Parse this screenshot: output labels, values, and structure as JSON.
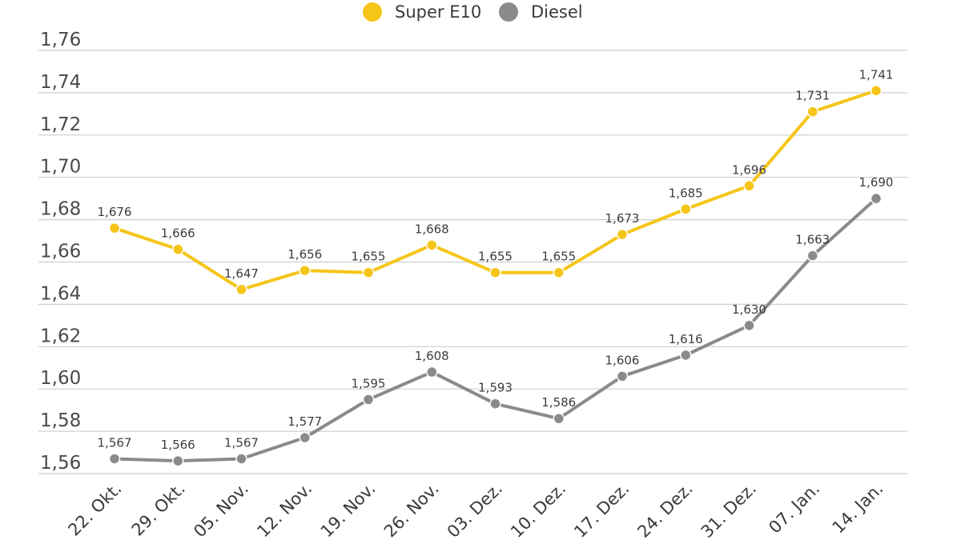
{
  "chart_data": {
    "type": "line",
    "title": "",
    "xlabel": "",
    "ylabel": "",
    "categories": [
      "22. Okt.",
      "29. Okt.",
      "05. Nov.",
      "12. Nov.",
      "19. Nov.",
      "26. Nov.",
      "03. Dez.",
      "10. Dez.",
      "17. Dez.",
      "24. Dez.",
      "31. Dez.",
      "07. Jan.",
      "14. Jan."
    ],
    "ylim": [
      1.555,
      1.76
    ],
    "yticks": [
      "1,56",
      "1,58",
      "1,60",
      "1,62",
      "1,64",
      "1,66",
      "1,68",
      "1,70",
      "1,72",
      "1,74",
      "1,76"
    ],
    "ytick_values": [
      1.56,
      1.58,
      1.6,
      1.62,
      1.64,
      1.66,
      1.68,
      1.7,
      1.72,
      1.74,
      1.76
    ],
    "grid": true,
    "legend_position": "top-center",
    "series": [
      {
        "name": "Super E10",
        "color": "#F5C518",
        "values": [
          1.676,
          1.666,
          1.647,
          1.656,
          1.655,
          1.668,
          1.655,
          1.655,
          1.673,
          1.685,
          1.696,
          1.731,
          1.741
        ],
        "labels": [
          "1,676",
          "1,666",
          "1,647",
          "1,656",
          "1,655",
          "1,668",
          "1,655",
          "1,655",
          "1,673",
          "1,685",
          "1,696",
          "1,731",
          "1,741"
        ]
      },
      {
        "name": "Diesel",
        "color": "#8A8A8A",
        "values": [
          1.567,
          1.566,
          1.567,
          1.577,
          1.595,
          1.608,
          1.593,
          1.586,
          1.606,
          1.616,
          1.63,
          1.663,
          1.69
        ],
        "labels": [
          "1,567",
          "1,566",
          "1,567",
          "1,577",
          "1,595",
          "1,608",
          "1,593",
          "1,586",
          "1,606",
          "1,616",
          "1,630",
          "1,663",
          "1,690"
        ]
      }
    ]
  }
}
